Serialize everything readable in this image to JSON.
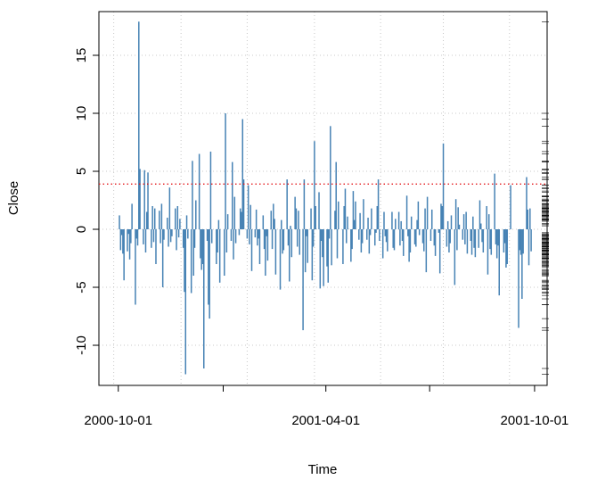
{
  "chart_data": {
    "type": "line",
    "style": "h",
    "x_label": "Time",
    "y_label": "Close",
    "xlim": [
      "2000-09-14",
      "2001-10-12"
    ],
    "ylim": [
      -13.46,
      18.77
    ],
    "xticks": [
      "2000-10-01",
      "2001-04-01",
      "2001-10-01"
    ],
    "xminor_ticks": [
      "2001-01-01",
      "2001-07-01"
    ],
    "xgrid": [
      "2000-09-27",
      "2000-11-25",
      "2001-01-22",
      "2001-03-22",
      "2001-05-19",
      "2001-07-13",
      "2001-09-09"
    ],
    "yticks": [
      -10,
      -5,
      0,
      5,
      10,
      15
    ],
    "grid": true,
    "grid_color": "#c8c8c8",
    "rug": "right",
    "hline": 3.9,
    "hline_color": "#e41a1c",
    "x": [
      "2000-10-02",
      "2000-10-03",
      "2000-10-04",
      "2000-10-05",
      "2000-10-06",
      "2000-10-09",
      "2000-10-10",
      "2000-10-11",
      "2000-10-12",
      "2000-10-13",
      "2000-10-16",
      "2000-10-17",
      "2000-10-18",
      "2000-10-19",
      "2000-10-20",
      "2000-10-23",
      "2000-10-24",
      "2000-10-25",
      "2000-10-26",
      "2000-10-27",
      "2000-10-30",
      "2000-10-31",
      "2000-11-01",
      "2000-11-02",
      "2000-11-03",
      "2000-11-06",
      "2000-11-07",
      "2000-11-08",
      "2000-11-09",
      "2000-11-10",
      "2000-11-13",
      "2000-11-14",
      "2000-11-15",
      "2000-11-16",
      "2000-11-17",
      "2000-11-20",
      "2000-11-21",
      "2000-11-22",
      "2000-11-23",
      "2000-11-24",
      "2000-11-27",
      "2000-11-28",
      "2000-11-29",
      "2000-11-30",
      "2000-12-01",
      "2000-12-04",
      "2000-12-05",
      "2000-12-06",
      "2000-12-07",
      "2000-12-08",
      "2000-12-11",
      "2000-12-12",
      "2000-12-13",
      "2000-12-14",
      "2000-12-15",
      "2000-12-18",
      "2000-12-19",
      "2000-12-20",
      "2000-12-21",
      "2000-12-22",
      "2000-12-26",
      "2000-12-27",
      "2000-12-28",
      "2000-12-29",
      "2001-01-02",
      "2001-01-03",
      "2001-01-04",
      "2001-01-05",
      "2001-01-08",
      "2001-01-09",
      "2001-01-10",
      "2001-01-11",
      "2001-01-12",
      "2001-01-15",
      "2001-01-16",
      "2001-01-17",
      "2001-01-18",
      "2001-01-19",
      "2001-01-22",
      "2001-01-23",
      "2001-01-24",
      "2001-01-25",
      "2001-01-26",
      "2001-01-29",
      "2001-01-30",
      "2001-01-31",
      "2001-02-01",
      "2001-02-02",
      "2001-02-05",
      "2001-02-06",
      "2001-02-07",
      "2001-02-08",
      "2001-02-09",
      "2001-02-12",
      "2001-02-13",
      "2001-02-14",
      "2001-02-15",
      "2001-02-16",
      "2001-02-20",
      "2001-02-21",
      "2001-02-22",
      "2001-02-23",
      "2001-02-26",
      "2001-02-27",
      "2001-02-28",
      "2001-03-01",
      "2001-03-02",
      "2001-03-05",
      "2001-03-06",
      "2001-03-07",
      "2001-03-08",
      "2001-03-09",
      "2001-03-12",
      "2001-03-13",
      "2001-03-14",
      "2001-03-15",
      "2001-03-16",
      "2001-03-19",
      "2001-03-20",
      "2001-03-21",
      "2001-03-22",
      "2001-03-23",
      "2001-03-26",
      "2001-03-27",
      "2001-03-28",
      "2001-03-29",
      "2001-03-30",
      "2001-04-02",
      "2001-04-03",
      "2001-04-04",
      "2001-04-05",
      "2001-04-06",
      "2001-04-09",
      "2001-04-10",
      "2001-04-11",
      "2001-04-12",
      "2001-04-16",
      "2001-04-17",
      "2001-04-18",
      "2001-04-19",
      "2001-04-20",
      "2001-04-23",
      "2001-04-24",
      "2001-04-25",
      "2001-04-26",
      "2001-04-27",
      "2001-04-30",
      "2001-05-01",
      "2001-05-02",
      "2001-05-03",
      "2001-05-04",
      "2001-05-07",
      "2001-05-08",
      "2001-05-09",
      "2001-05-10",
      "2001-05-11",
      "2001-05-14",
      "2001-05-15",
      "2001-05-16",
      "2001-05-17",
      "2001-05-18",
      "2001-05-21",
      "2001-05-22",
      "2001-05-23",
      "2001-05-24",
      "2001-05-25",
      "2001-05-29",
      "2001-05-30",
      "2001-05-31",
      "2001-06-01",
      "2001-06-04",
      "2001-06-05",
      "2001-06-06",
      "2001-06-07",
      "2001-06-08",
      "2001-06-11",
      "2001-06-12",
      "2001-06-13",
      "2001-06-14",
      "2001-06-15",
      "2001-06-18",
      "2001-06-19",
      "2001-06-20",
      "2001-06-21",
      "2001-06-22",
      "2001-06-25",
      "2001-06-26",
      "2001-06-27",
      "2001-06-28",
      "2001-06-29",
      "2001-07-02",
      "2001-07-03",
      "2001-07-05",
      "2001-07-06",
      "2001-07-09",
      "2001-07-10",
      "2001-07-11",
      "2001-07-12",
      "2001-07-13",
      "2001-07-16",
      "2001-07-17",
      "2001-07-18",
      "2001-07-19",
      "2001-07-20",
      "2001-07-23",
      "2001-07-24",
      "2001-07-25",
      "2001-07-26",
      "2001-07-27",
      "2001-07-30",
      "2001-07-31",
      "2001-08-01",
      "2001-08-02",
      "2001-08-03",
      "2001-08-06",
      "2001-08-07",
      "2001-08-08",
      "2001-08-09",
      "2001-08-10",
      "2001-08-13",
      "2001-08-14",
      "2001-08-15",
      "2001-08-16",
      "2001-08-17",
      "2001-08-20",
      "2001-08-21",
      "2001-08-22",
      "2001-08-23",
      "2001-08-24",
      "2001-08-27",
      "2001-08-28",
      "2001-08-29",
      "2001-08-30",
      "2001-08-31",
      "2001-09-04",
      "2001-09-05",
      "2001-09-06",
      "2001-09-07",
      "2001-09-10",
      "2001-09-17",
      "2001-09-18",
      "2001-09-19",
      "2001-09-20",
      "2001-09-21",
      "2001-09-24",
      "2001-09-25",
      "2001-09-26",
      "2001-09-27",
      "2001-09-28"
    ],
    "series": [
      {
        "color": "#4682b4",
        "values": [
          1.2,
          -1.8,
          -0.5,
          -2.1,
          -4.4,
          -1.9,
          -0.4,
          -2.6,
          -1.2,
          2.2,
          -6.5,
          -0.8,
          -1.4,
          17.9,
          5.2,
          -1.3,
          5.1,
          -2.0,
          1.5,
          4.9,
          -1.6,
          2.0,
          -1.1,
          1.8,
          -3.0,
          1.6,
          -1.2,
          2.2,
          -5.0,
          -0.9,
          1.0,
          -1.5,
          3.6,
          -1.1,
          -0.6,
          1.8,
          -1.8,
          2.0,
          -0.7,
          0.9,
          -1.6,
          -5.4,
          -12.5,
          1.2,
          -0.8,
          -5.5,
          5.9,
          -4.0,
          -1.6,
          2.5,
          6.5,
          -2.5,
          -3.5,
          -3.0,
          -12.0,
          -1.0,
          -6.5,
          -7.7,
          6.7,
          -1.2,
          -3.0,
          -2.0,
          0.8,
          -4.6,
          -4.0,
          10.0,
          -2.0,
          1.3,
          -1.0,
          5.8,
          -2.6,
          2.8,
          -1.2,
          -0.5,
          1.8,
          1.5,
          9.5,
          4.3,
          -0.8,
          3.8,
          -1.3,
          2.1,
          -3.6,
          -0.7,
          1.7,
          -1.4,
          -0.8,
          -3.0,
          1.2,
          -1.7,
          -4.0,
          -0.6,
          -2.7,
          1.6,
          -1.7,
          2.2,
          0.9,
          -3.9,
          -5.2,
          0.8,
          -2.1,
          -1.8,
          4.3,
          -1.4,
          -4.5,
          0.3,
          -2.4,
          2.8,
          1.8,
          -1.5,
          1.6,
          -2.2,
          -8.7,
          4.3,
          -3.7,
          -0.6,
          -2.9,
          1.8,
          -4.4,
          -1.5,
          7.6,
          2.0,
          3.2,
          -5.1,
          -1.0,
          -2.4,
          -4.9,
          -3.2,
          -4.6,
          -0.8,
          8.9,
          -3.1,
          1.6,
          5.8,
          -2.5,
          2.4,
          -3.0,
          2.0,
          3.5,
          -1.2,
          1.1,
          -2.8,
          -1.7,
          3.3,
          0.8,
          2.4,
          -0.9,
          1.4,
          -2.0,
          -1.2,
          2.6,
          -0.9,
          1.0,
          -2.1,
          -0.5,
          1.8,
          -1.4,
          -0.3,
          2.0,
          4.3,
          -1.0,
          -2.5,
          1.5,
          -0.6,
          -1.1,
          -1.9,
          1.5,
          -1.6,
          -1.8,
          0.9,
          1.5,
          -1.4,
          0.7,
          -1.0,
          -2.3,
          2.9,
          -0.6,
          -2.8,
          -2.0,
          1.1,
          -1.3,
          -1.5,
          0.8,
          2.4,
          -0.5,
          -1.2,
          -1.9,
          1.8,
          -3.7,
          2.8,
          -1.0,
          1.7,
          -1.4,
          -2.3,
          -0.3,
          -3.8,
          2.2,
          2.0,
          7.4,
          -1.5,
          0.7,
          -2.0,
          -1.2,
          1.2,
          -4.8,
          2.6,
          -1.8,
          1.9,
          0.4,
          -0.9,
          1.3,
          -1.3,
          1.5,
          -2.1,
          -1.0,
          -2.2,
          1.1,
          -1.6,
          -2.4,
          -1.6,
          2.5,
          0.5,
          -1.1,
          -2.0,
          2.0,
          -3.9,
          1.3,
          -1.7,
          -2.2,
          4.8,
          -1.3,
          -2.5,
          -1.4,
          -5.7,
          -2.0,
          -1.2,
          -3.3,
          -3.0,
          3.8,
          -8.5,
          -1.8,
          -2.2,
          -6.0,
          -2.1,
          4.5,
          1.7,
          -3.1,
          1.8,
          -1.9
        ]
      }
    ]
  }
}
